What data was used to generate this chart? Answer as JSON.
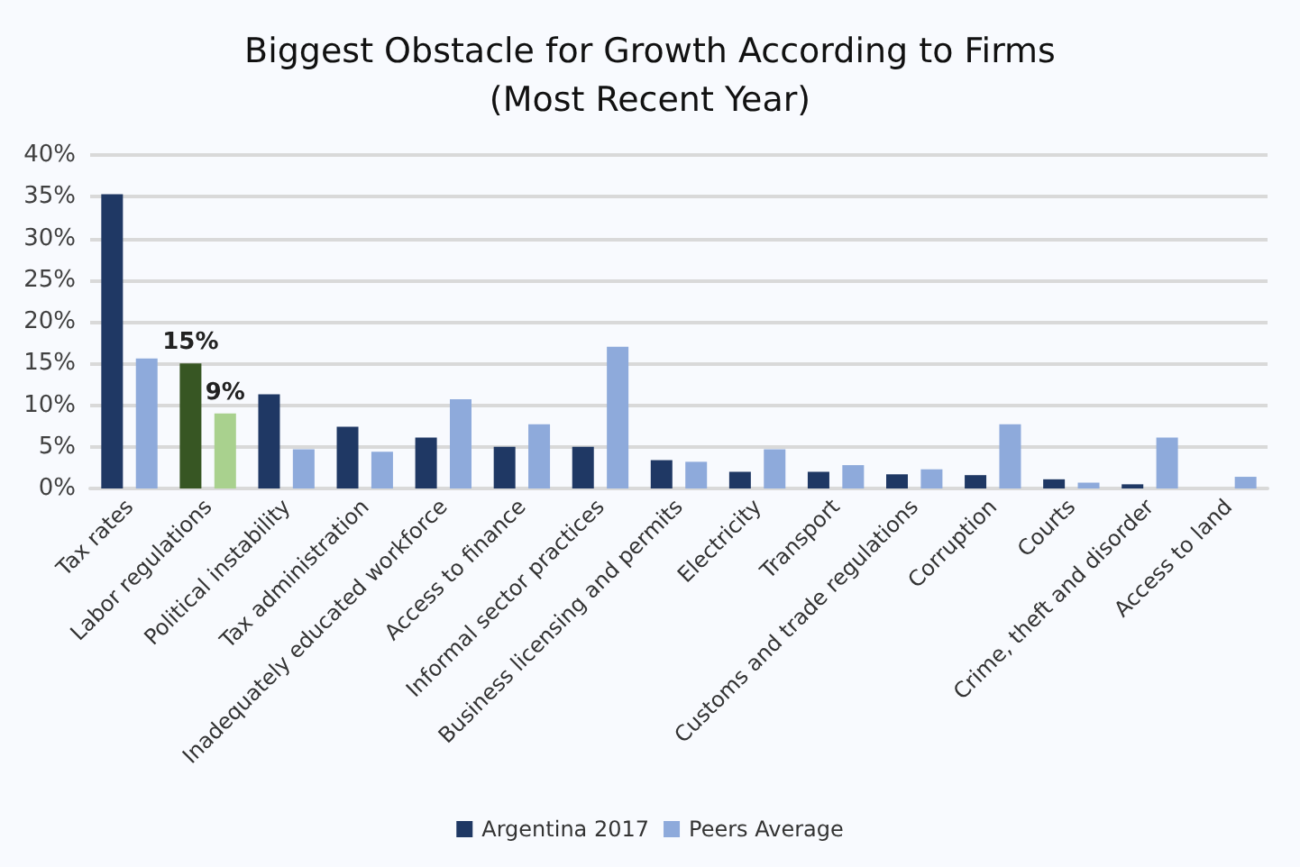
{
  "chart_data": {
    "type": "bar",
    "title": "Biggest Obstacle for Growth According to Firms\n(Most Recent Year)",
    "categories": [
      "Tax rates",
      "Labor regulations",
      "Political instability",
      "Tax administration",
      "Inadequately educated workforce",
      "Access to finance",
      "Informal sector practices",
      "Business licensing and permits",
      "Electricity",
      "Transport",
      "Customs and trade regulations",
      "Corruption",
      "Courts",
      "Crime, theft and disorder",
      "Access to land"
    ],
    "series": [
      {
        "name": "Argentina 2017",
        "color": "#1f3864",
        "colors": [
          "#1f3864",
          "#375623",
          "#1f3864",
          "#1f3864",
          "#1f3864",
          "#1f3864",
          "#1f3864",
          "#1f3864",
          "#1f3864",
          "#1f3864",
          "#1f3864",
          "#1f3864",
          "#1f3864",
          "#1f3864",
          "#1f3864"
        ],
        "values": [
          35.3,
          15,
          11.3,
          7.4,
          6.1,
          5.0,
          5.0,
          3.4,
          2.0,
          2.0,
          1.7,
          1.6,
          1.1,
          0.5,
          null
        ],
        "value_labels": [
          null,
          "15%",
          null,
          null,
          null,
          null,
          null,
          null,
          null,
          null,
          null,
          null,
          null,
          null,
          null
        ]
      },
      {
        "name": "Peers Average",
        "color": "#8eaadb",
        "colors": [
          "#8eaadb",
          "#a9d18e",
          "#8eaadb",
          "#8eaadb",
          "#8eaadb",
          "#8eaadb",
          "#8eaadb",
          "#8eaadb",
          "#8eaadb",
          "#8eaadb",
          "#8eaadb",
          "#8eaadb",
          "#8eaadb",
          "#8eaadb",
          "#8eaadb"
        ],
        "values": [
          15.6,
          9,
          4.7,
          4.4,
          10.7,
          7.7,
          17.0,
          3.2,
          4.7,
          2.8,
          2.3,
          7.7,
          0.7,
          6.1,
          1.4
        ],
        "value_labels": [
          null,
          "9%",
          null,
          null,
          null,
          null,
          null,
          null,
          null,
          null,
          null,
          null,
          null,
          null,
          null
        ]
      }
    ],
    "ylim": [
      0,
      40
    ],
    "yticks": [
      {
        "value": 0,
        "label": "0%"
      },
      {
        "value": 5,
        "label": "5%"
      },
      {
        "value": 10,
        "label": "10%"
      },
      {
        "value": 15,
        "label": "15%"
      },
      {
        "value": 20,
        "label": "20%"
      },
      {
        "value": 25,
        "label": "25%"
      },
      {
        "value": 30,
        "label": "30%"
      },
      {
        "value": 35,
        "label": "35%"
      },
      {
        "value": 40,
        "label": "40%"
      }
    ],
    "grid": "y",
    "legend": "bottom"
  }
}
